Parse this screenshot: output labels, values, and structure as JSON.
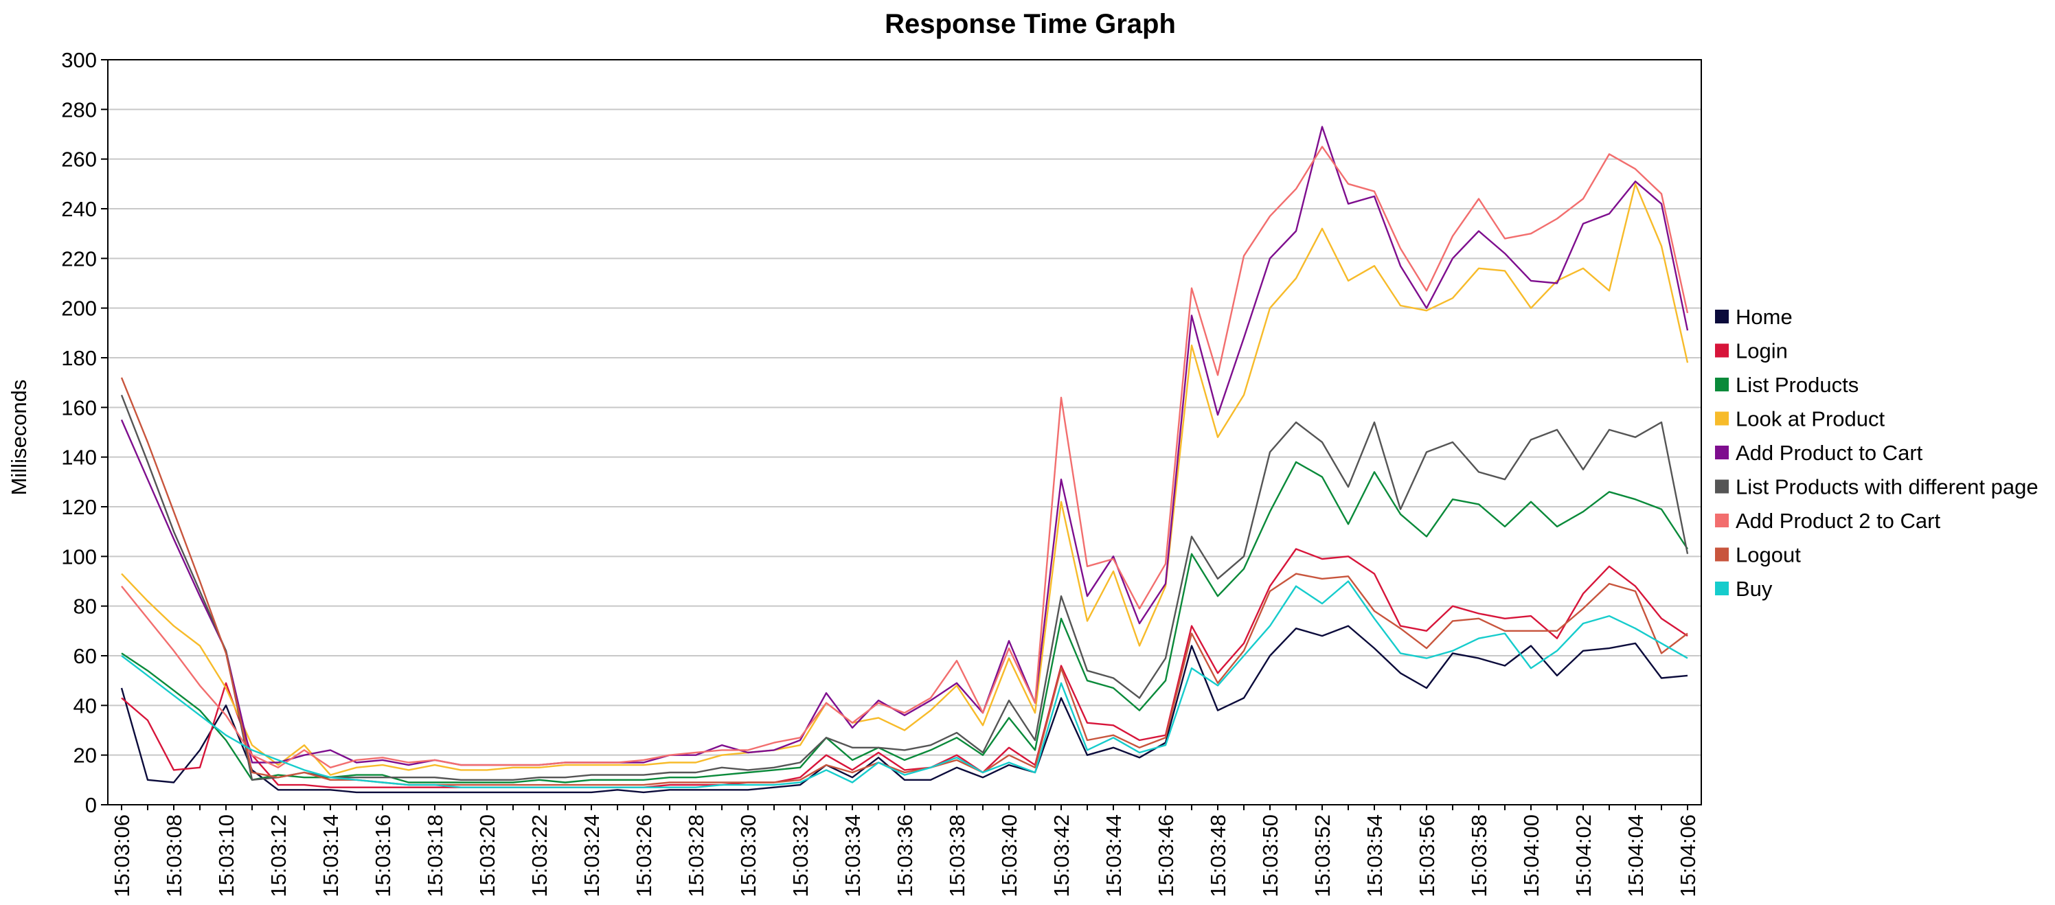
{
  "chart_data": {
    "type": "line",
    "title": "Response Time Graph",
    "xlabel": "",
    "ylabel": "Milliseconds",
    "ylim": [
      0,
      300
    ],
    "yticks": [
      0,
      20,
      40,
      60,
      80,
      100,
      120,
      140,
      160,
      180,
      200,
      220,
      240,
      260,
      280,
      300
    ],
    "grid": true,
    "legend_position": "right",
    "x": [
      "15:03:06",
      "15:03:07",
      "15:03:08",
      "15:03:09",
      "15:03:10",
      "15:03:11",
      "15:03:12",
      "15:03:13",
      "15:03:14",
      "15:03:15",
      "15:03:16",
      "15:03:17",
      "15:03:18",
      "15:03:19",
      "15:03:20",
      "15:03:21",
      "15:03:22",
      "15:03:23",
      "15:03:24",
      "15:03:25",
      "15:03:26",
      "15:03:27",
      "15:03:28",
      "15:03:29",
      "15:03:30",
      "15:03:31",
      "15:03:32",
      "15:03:33",
      "15:03:34",
      "15:03:35",
      "15:03:36",
      "15:03:37",
      "15:03:38",
      "15:03:39",
      "15:03:40",
      "15:03:41",
      "15:03:42",
      "15:03:43",
      "15:03:44",
      "15:03:45",
      "15:03:46",
      "15:03:47",
      "15:03:48",
      "15:03:49",
      "15:03:50",
      "15:03:51",
      "15:03:52",
      "15:03:53",
      "15:03:54",
      "15:03:55",
      "15:03:56",
      "15:03:57",
      "15:03:58",
      "15:03:59",
      "15:04:00",
      "15:04:01",
      "15:04:02",
      "15:04:03",
      "15:04:04",
      "15:04:05",
      "15:04:06"
    ],
    "x_tick_labels": [
      "15:03:06",
      "15:03:08",
      "15:03:10",
      "15:03:12",
      "15:03:14",
      "15:03:16",
      "15:03:18",
      "15:03:20",
      "15:03:22",
      "15:03:24",
      "15:03:26",
      "15:03:28",
      "15:03:30",
      "15:03:32",
      "15:03:34",
      "15:03:36",
      "15:03:38",
      "15:03:40",
      "15:03:42",
      "15:03:44",
      "15:03:46",
      "15:03:48",
      "15:03:50",
      "15:03:52",
      "15:03:54",
      "15:03:56",
      "15:03:58",
      "15:04:00",
      "15:04:02",
      "15:04:04",
      "15:04:06"
    ],
    "series": [
      {
        "name": "Home",
        "color": "#0b0b3b",
        "values": [
          47,
          10,
          9,
          22,
          40,
          14,
          6,
          6,
          6,
          5,
          5,
          5,
          5,
          5,
          5,
          5,
          5,
          5,
          5,
          6,
          5,
          6,
          6,
          6,
          6,
          7,
          8,
          16,
          11,
          19,
          10,
          10,
          15,
          11,
          16,
          13,
          43,
          20,
          23,
          19,
          25,
          64,
          38,
          43,
          60,
          71,
          68,
          72,
          63,
          53,
          47,
          61,
          59,
          56,
          64,
          52,
          62,
          63,
          65,
          51,
          52
        ]
      },
      {
        "name": "Login",
        "color": "#d7153a",
        "values": [
          43,
          34,
          14,
          15,
          49,
          20,
          8,
          8,
          7,
          7,
          7,
          7,
          7,
          7,
          7,
          7,
          7,
          7,
          7,
          7,
          7,
          8,
          8,
          8,
          9,
          9,
          11,
          20,
          14,
          21,
          14,
          15,
          20,
          13,
          23,
          16,
          56,
          33,
          32,
          26,
          28,
          72,
          53,
          65,
          88,
          103,
          99,
          100,
          93,
          72,
          70,
          80,
          77,
          75,
          76,
          67,
          85,
          96,
          88,
          75,
          68
        ]
      },
      {
        "name": "List Products",
        "color": "#0a8a3a",
        "values": [
          61,
          54,
          46,
          38,
          26,
          10,
          12,
          11,
          11,
          12,
          12,
          9,
          9,
          9,
          9,
          9,
          10,
          9,
          10,
          10,
          10,
          11,
          11,
          12,
          13,
          14,
          15,
          27,
          18,
          23,
          18,
          22,
          27,
          20,
          35,
          22,
          75,
          50,
          47,
          38,
          50,
          101,
          84,
          95,
          118,
          138,
          132,
          113,
          134,
          117,
          108,
          123,
          121,
          112,
          122,
          112,
          118,
          126,
          123,
          119,
          103
        ]
      },
      {
        "name": "Look at Product",
        "color": "#f7bb2a",
        "values": [
          93,
          82,
          72,
          64,
          47,
          24,
          16,
          24,
          12,
          15,
          16,
          14,
          16,
          14,
          14,
          15,
          15,
          16,
          16,
          16,
          16,
          17,
          17,
          20,
          21,
          22,
          24,
          41,
          33,
          35,
          30,
          38,
          48,
          32,
          59,
          37,
          122,
          74,
          94,
          64,
          88,
          185,
          148,
          165,
          200,
          212,
          232,
          211,
          217,
          201,
          199,
          204,
          216,
          215,
          200,
          211,
          216,
          207,
          250,
          225,
          178
        ]
      },
      {
        "name": "Add Product to Cart",
        "color": "#7e0e8e",
        "values": [
          155,
          131,
          107,
          84,
          62,
          17,
          17,
          20,
          22,
          17,
          18,
          16,
          18,
          16,
          16,
          16,
          16,
          17,
          17,
          17,
          17,
          20,
          20,
          24,
          21,
          22,
          26,
          45,
          31,
          42,
          36,
          42,
          49,
          37,
          66,
          41,
          131,
          84,
          100,
          73,
          89,
          197,
          157,
          188,
          220,
          231,
          273,
          242,
          245,
          217,
          200,
          220,
          231,
          222,
          211,
          210,
          234,
          238,
          251,
          242,
          191
        ]
      },
      {
        "name": "List Products with different page",
        "color": "#555555",
        "values": [
          165,
          138,
          110,
          86,
          62,
          10,
          11,
          13,
          11,
          11,
          11,
          11,
          11,
          10,
          10,
          10,
          11,
          11,
          12,
          12,
          12,
          13,
          13,
          15,
          14,
          15,
          17,
          27,
          23,
          23,
          22,
          24,
          29,
          21,
          42,
          26,
          84,
          54,
          51,
          43,
          59,
          108,
          91,
          100,
          142,
          154,
          146,
          128,
          154,
          119,
          142,
          146,
          134,
          131,
          147,
          151,
          135,
          151,
          148,
          154,
          101
        ]
      },
      {
        "name": "Add Product 2 to Cart",
        "color": "#f26e6e",
        "values": [
          88,
          75,
          62,
          48,
          36,
          20,
          15,
          22,
          15,
          18,
          19,
          17,
          18,
          16,
          16,
          16,
          16,
          17,
          17,
          17,
          18,
          20,
          21,
          22,
          22,
          25,
          27,
          41,
          33,
          41,
          37,
          43,
          58,
          37,
          63,
          41,
          164,
          96,
          99,
          79,
          97,
          208,
          173,
          221,
          237,
          248,
          265,
          250,
          247,
          224,
          207,
          229,
          244,
          228,
          230,
          236,
          244,
          262,
          256,
          246,
          198
        ]
      },
      {
        "name": "Logout",
        "color": "#c8553d",
        "values": [
          172,
          146,
          118,
          90,
          61,
          13,
          11,
          13,
          10,
          10,
          9,
          8,
          8,
          8,
          8,
          8,
          8,
          8,
          8,
          8,
          8,
          9,
          9,
          9,
          9,
          9,
          10,
          16,
          13,
          17,
          13,
          15,
          18,
          13,
          20,
          15,
          55,
          26,
          28,
          23,
          27,
          69,
          49,
          62,
          86,
          93,
          91,
          92,
          78,
          71,
          63,
          74,
          75,
          70,
          70,
          70,
          79,
          89,
          86,
          61,
          69
        ]
      },
      {
        "name": "Buy",
        "color": "#16cccc",
        "values": [
          60,
          52,
          44,
          36,
          28,
          22,
          18,
          14,
          11,
          10,
          9,
          8,
          8,
          7,
          7,
          7,
          7,
          7,
          7,
          7,
          7,
          7,
          7,
          8,
          8,
          8,
          9,
          14,
          9,
          17,
          12,
          15,
          19,
          13,
          17,
          13,
          49,
          22,
          27,
          21,
          24,
          55,
          48,
          60,
          72,
          88,
          81,
          90,
          75,
          61,
          59,
          62,
          67,
          69,
          55,
          62,
          73,
          76,
          71,
          65,
          59
        ]
      }
    ]
  }
}
